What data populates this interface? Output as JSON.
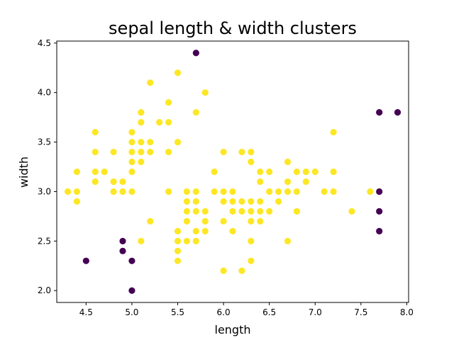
{
  "chart_data": {
    "type": "scatter",
    "title": "sepal length & width clusters",
    "xlabel": "length",
    "ylabel": "width",
    "xlim": [
      4.18,
      8.02
    ],
    "ylim": [
      1.88,
      4.52
    ],
    "xticks": [
      "4.5",
      "5.0",
      "5.5",
      "6.0",
      "6.5",
      "7.0",
      "7.5",
      "8.0"
    ],
    "yticks": [
      "2.0",
      "2.5",
      "3.0",
      "3.5",
      "4.0",
      "4.5"
    ],
    "grid": false,
    "legend": "none",
    "colors": {
      "cluster_0": "#440154",
      "cluster_1": "#fde725"
    },
    "series": [
      {
        "cluster": 0,
        "color": "#440154",
        "points": [
          [
            5.7,
            4.4
          ],
          [
            7.7,
            3.8
          ],
          [
            7.9,
            3.8
          ],
          [
            7.7,
            3.0
          ],
          [
            7.7,
            2.8
          ],
          [
            7.7,
            2.6
          ],
          [
            4.9,
            2.5
          ],
          [
            4.9,
            2.4
          ],
          [
            4.5,
            2.3
          ],
          [
            5.0,
            2.3
          ],
          [
            5.0,
            2.0
          ]
        ]
      },
      {
        "cluster": 1,
        "color": "#fde725",
        "points": [
          [
            5.5,
            4.2
          ],
          [
            5.2,
            4.1
          ],
          [
            5.8,
            4.0
          ],
          [
            5.4,
            3.9
          ],
          [
            5.1,
            3.8
          ],
          [
            5.7,
            3.8
          ],
          [
            5.1,
            3.7
          ],
          [
            5.3,
            3.7
          ],
          [
            5.4,
            3.7
          ],
          [
            4.6,
            3.6
          ],
          [
            5.0,
            3.6
          ],
          [
            7.2,
            3.6
          ],
          [
            5.0,
            3.5
          ],
          [
            5.1,
            3.5
          ],
          [
            5.2,
            3.5
          ],
          [
            5.5,
            3.5
          ],
          [
            4.6,
            3.4
          ],
          [
            4.8,
            3.4
          ],
          [
            5.0,
            3.4
          ],
          [
            5.1,
            3.4
          ],
          [
            5.2,
            3.4
          ],
          [
            5.4,
            3.4
          ],
          [
            6.0,
            3.4
          ],
          [
            6.2,
            3.4
          ],
          [
            6.3,
            3.4
          ],
          [
            5.0,
            3.3
          ],
          [
            5.1,
            3.3
          ],
          [
            6.3,
            3.3
          ],
          [
            6.7,
            3.3
          ],
          [
            4.4,
            3.2
          ],
          [
            4.6,
            3.2
          ],
          [
            4.7,
            3.2
          ],
          [
            5.0,
            3.2
          ],
          [
            5.9,
            3.2
          ],
          [
            6.4,
            3.2
          ],
          [
            6.5,
            3.2
          ],
          [
            6.8,
            3.2
          ],
          [
            6.9,
            3.2
          ],
          [
            7.0,
            3.2
          ],
          [
            7.2,
            3.2
          ],
          [
            4.6,
            3.1
          ],
          [
            4.8,
            3.1
          ],
          [
            4.9,
            3.1
          ],
          [
            6.4,
            3.1
          ],
          [
            6.7,
            3.1
          ],
          [
            6.9,
            3.1
          ],
          [
            4.3,
            3.0
          ],
          [
            4.4,
            3.0
          ],
          [
            4.8,
            3.0
          ],
          [
            4.9,
            3.0
          ],
          [
            5.0,
            3.0
          ],
          [
            5.4,
            3.0
          ],
          [
            5.6,
            3.0
          ],
          [
            5.7,
            3.0
          ],
          [
            5.9,
            3.0
          ],
          [
            6.0,
            3.0
          ],
          [
            6.1,
            3.0
          ],
          [
            6.5,
            3.0
          ],
          [
            6.6,
            3.0
          ],
          [
            6.7,
            3.0
          ],
          [
            6.8,
            3.0
          ],
          [
            7.1,
            3.0
          ],
          [
            7.2,
            3.0
          ],
          [
            7.6,
            3.0
          ],
          [
            4.4,
            2.9
          ],
          [
            5.6,
            2.9
          ],
          [
            5.7,
            2.9
          ],
          [
            6.0,
            2.9
          ],
          [
            6.1,
            2.9
          ],
          [
            6.2,
            2.9
          ],
          [
            6.3,
            2.9
          ],
          [
            6.4,
            2.9
          ],
          [
            6.6,
            2.9
          ],
          [
            5.6,
            2.8
          ],
          [
            5.7,
            2.8
          ],
          [
            5.8,
            2.8
          ],
          [
            6.1,
            2.8
          ],
          [
            6.2,
            2.8
          ],
          [
            6.3,
            2.8
          ],
          [
            6.4,
            2.8
          ],
          [
            6.5,
            2.8
          ],
          [
            6.8,
            2.8
          ],
          [
            7.4,
            2.8
          ],
          [
            5.2,
            2.7
          ],
          [
            5.6,
            2.7
          ],
          [
            5.8,
            2.7
          ],
          [
            6.0,
            2.7
          ],
          [
            6.3,
            2.7
          ],
          [
            6.4,
            2.7
          ],
          [
            5.5,
            2.6
          ],
          [
            5.7,
            2.6
          ],
          [
            5.8,
            2.6
          ],
          [
            6.1,
            2.6
          ],
          [
            5.1,
            2.5
          ],
          [
            5.5,
            2.5
          ],
          [
            5.6,
            2.5
          ],
          [
            5.7,
            2.5
          ],
          [
            6.3,
            2.5
          ],
          [
            6.7,
            2.5
          ],
          [
            5.5,
            2.4
          ],
          [
            5.5,
            2.3
          ],
          [
            6.3,
            2.3
          ],
          [
            6.0,
            2.2
          ],
          [
            6.2,
            2.2
          ]
        ]
      }
    ]
  }
}
